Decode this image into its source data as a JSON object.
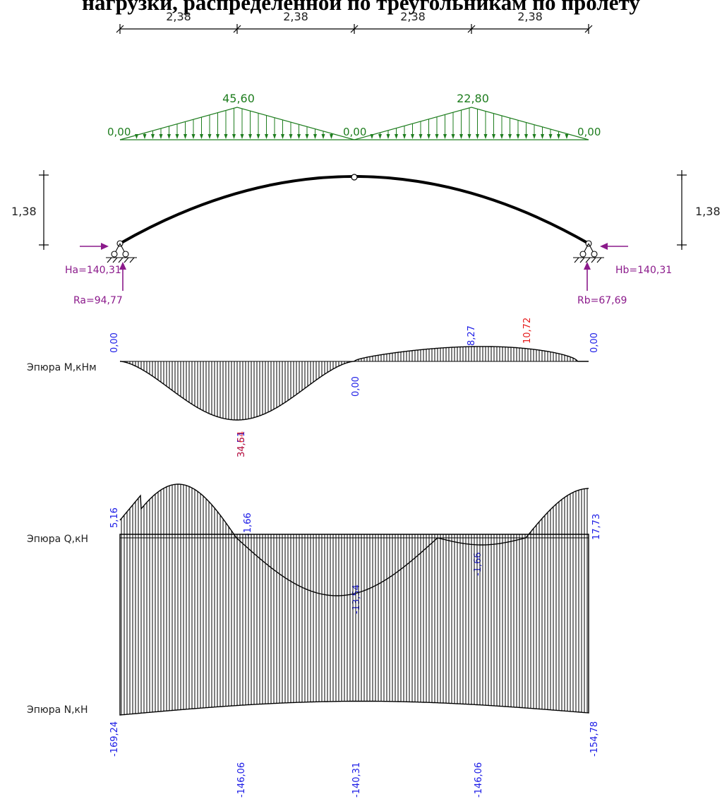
{
  "heading": "нагрузки, распределенной по треугольникам по пролету",
  "dimensions": {
    "spans": [
      "2,38",
      "2,38",
      "2,38",
      "2,38"
    ],
    "rise_left": "1,38",
    "rise_right": "1,38"
  },
  "load": {
    "peak_left": "45,60",
    "peak_right": "22,80",
    "left_end": "0,00",
    "middle": "0,00",
    "right_end": "0,00"
  },
  "reactions": {
    "Ha": "Ha=140,31",
    "Hb": "Hb=140,31",
    "Ra": "Ra=94,77",
    "Rb": "Rb=67,69"
  },
  "diagram_M": {
    "title": "Эпюра M,кНм",
    "labels": {
      "start": "0,00",
      "mid_crown": "0,00",
      "end": "0,00",
      "min_a": "34,51",
      "min_b": "34,64",
      "pos_a": "8,27",
      "pos_b": "10,72"
    }
  },
  "diagram_Q": {
    "title": "Эпюра Q,кН",
    "labels": {
      "start": "5,16",
      "quarter_left": "-1,66",
      "min": "-13,54",
      "quarter_right": "-1,66",
      "end": "17,73"
    }
  },
  "diagram_N": {
    "title": "Эпюра N,кН",
    "labels": {
      "start": "-169,24",
      "quarter_left": "-146,06",
      "crown": "-140,31",
      "quarter_right": "-146,06",
      "end": "-154,78"
    }
  },
  "colors": {
    "load": "#1e7d1e",
    "reaction": "#8b1a8b",
    "value_label": "#1a1ae6",
    "extreme_label": "#e61a1a",
    "structure": "#000000"
  }
}
